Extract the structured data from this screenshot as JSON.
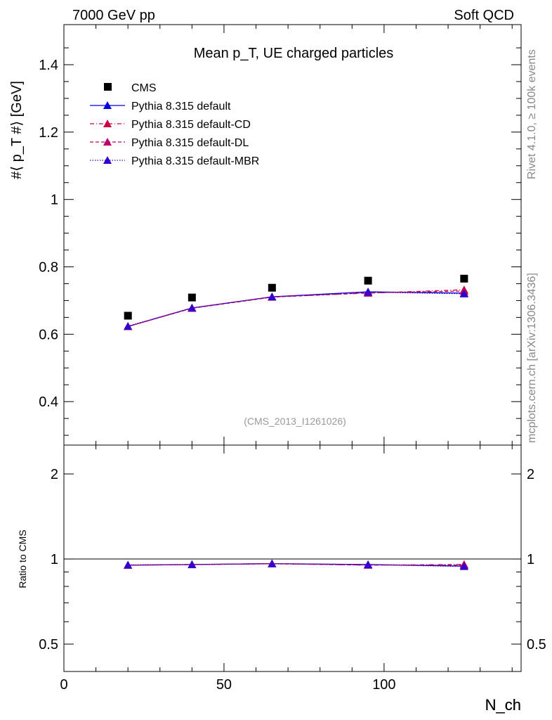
{
  "header": {
    "left": "7000 GeV pp",
    "right": "Soft QCD"
  },
  "side": {
    "top": "Rivet 4.1.0, ≥ 100k events",
    "bottom": "mcplots.cern.ch [arXiv:1306.3436]"
  },
  "chart_data": [
    {
      "type": "line",
      "title": "Mean p_T, UE charged particles",
      "ylabel": "#⟨ p_T #⟩ [GeV]",
      "xlabel": "N_ch",
      "ylim": [
        0.271,
        1.519
      ],
      "xlim": [
        0,
        142.8
      ],
      "yticks": [
        0.4,
        0.6,
        0.8,
        1,
        1.2,
        1.4
      ],
      "ytick_labels": [
        "0.4",
        "0.6",
        "0.8",
        "1",
        "1.2",
        "1.4"
      ],
      "watermark": "(CMS_2013_I1261026)",
      "x": [
        20,
        40,
        65,
        95,
        125
      ],
      "series": [
        {
          "name": "CMS",
          "values": [
            0.655,
            0.709,
            0.738,
            0.759,
            0.765
          ],
          "color": "#000000",
          "style": "square"
        },
        {
          "name": "Pythia 8.315 default",
          "values": [
            0.623,
            0.678,
            0.711,
            0.726,
            0.722
          ],
          "color": "#0000dd",
          "style": "solid"
        },
        {
          "name": "Pythia 8.315 default-CD",
          "values": [
            0.623,
            0.678,
            0.711,
            0.722,
            0.732
          ],
          "color": "#cc0044",
          "style": "dashdot"
        },
        {
          "name": "Pythia 8.315 default-DL",
          "values": [
            0.623,
            0.677,
            0.71,
            0.723,
            0.728
          ],
          "color": "#bb0066",
          "style": "dashed"
        },
        {
          "name": "Pythia 8.315 default-MBR",
          "values": [
            0.624,
            0.678,
            0.711,
            0.725,
            0.72
          ],
          "color": "#3300cc",
          "style": "dotted"
        }
      ]
    },
    {
      "type": "line",
      "ylabel": "Ratio to CMS",
      "xlabel": "N_ch",
      "yscale": "log",
      "ylim": [
        0.4,
        2.53
      ],
      "xlim": [
        0,
        142.8
      ],
      "yticks": [
        0.5,
        1,
        2
      ],
      "ytick_labels": [
        "0.5",
        "1",
        "2"
      ],
      "xticks": [
        0,
        50,
        100
      ],
      "xtick_labels": [
        "0",
        "50",
        "100"
      ],
      "x": [
        20,
        40,
        65,
        95,
        125
      ],
      "series": [
        {
          "name": "Pythia 8.315 default",
          "values": [
            0.951,
            0.956,
            0.963,
            0.956,
            0.944
          ],
          "color": "#0000dd",
          "style": "solid"
        },
        {
          "name": "Pythia 8.315 default-CD",
          "values": [
            0.951,
            0.956,
            0.963,
            0.951,
            0.957
          ],
          "color": "#cc0044",
          "style": "dashdot"
        },
        {
          "name": "Pythia 8.315 default-DL",
          "values": [
            0.951,
            0.955,
            0.962,
            0.952,
            0.952
          ],
          "color": "#bb0066",
          "style": "dashed"
        },
        {
          "name": "Pythia 8.315 default-MBR",
          "values": [
            0.953,
            0.956,
            0.963,
            0.955,
            0.941
          ],
          "color": "#3300cc",
          "style": "dotted"
        }
      ]
    }
  ]
}
